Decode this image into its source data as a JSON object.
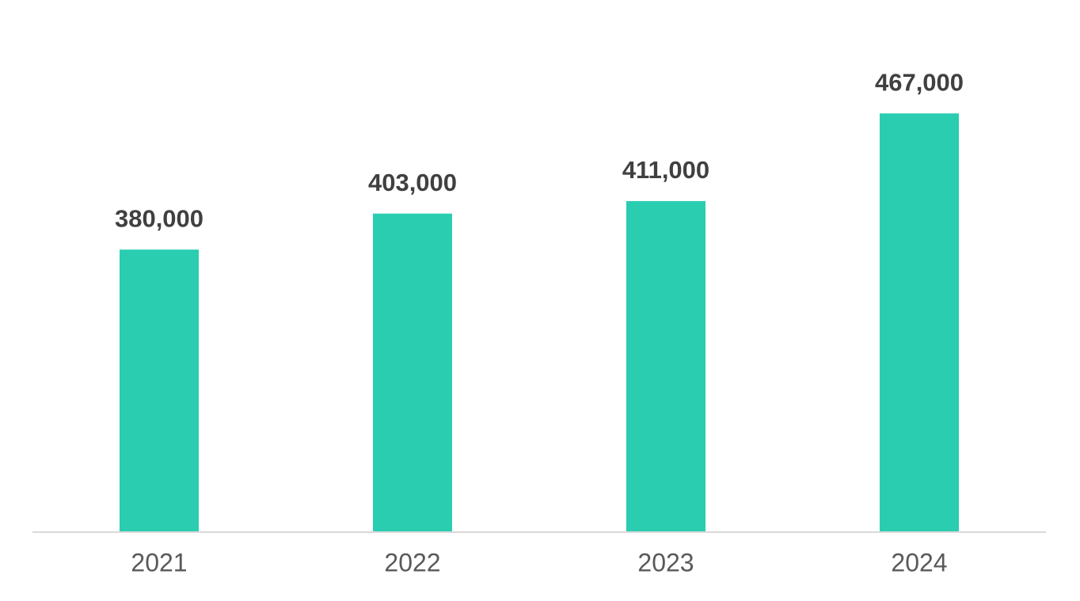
{
  "chart_data": {
    "type": "bar",
    "categories": [
      "2021",
      "2022",
      "2023",
      "2024"
    ],
    "values": [
      380000,
      403000,
      411000,
      467000
    ],
    "value_labels": [
      "380,000",
      "403,000",
      "411,000",
      "467,000"
    ],
    "color": "#2bcdb0",
    "ylim": [
      200000,
      500000
    ]
  }
}
